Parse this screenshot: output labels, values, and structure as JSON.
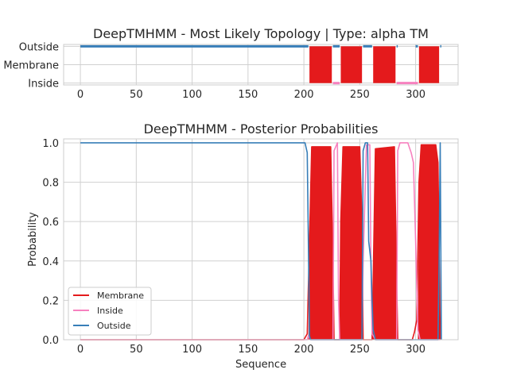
{
  "colors": {
    "membrane": "#e41a1c",
    "inside": "#f781bf",
    "outside": "#377eb8",
    "grid": "#d0d0d0",
    "axes": "#cccccc"
  },
  "chart_data": [
    {
      "type": "line",
      "title": "DeepTMHMM - Most Likely Topology | Type: alpha TM",
      "xlabel": "",
      "ylabel": "",
      "xlim": [
        -15,
        338
      ],
      "ylim": [
        -0.1,
        2.1
      ],
      "x_ticks": [
        "0",
        "50",
        "100",
        "150",
        "200",
        "250",
        "300"
      ],
      "y_ticks": [
        "Inside",
        "Membrane",
        "Outside"
      ],
      "grid": true,
      "series": [
        {
          "name": "Outside",
          "color_key": "outside",
          "segments": [
            [
              0,
              204
            ],
            [
              226,
              232
            ],
            [
              253,
              261
            ],
            [
              283,
              284
            ],
            [
              300,
              302
            ],
            [
              322,
              323
            ]
          ]
        },
        {
          "name": "Inside",
          "color_key": "inside",
          "segments": [
            [
              226,
              232
            ],
            [
              283,
              302
            ]
          ]
        },
        {
          "name": "Membrane",
          "color_key": "membrane",
          "segments": [
            [
              205,
              225
            ],
            [
              233,
              252
            ],
            [
              262,
              282
            ],
            [
              303,
              321
            ]
          ]
        }
      ]
    },
    {
      "type": "line",
      "title": "DeepTMHMM - Posterior Probabilities",
      "xlabel": "Sequence",
      "ylabel": "Probability",
      "xlim": [
        -15,
        338
      ],
      "ylim": [
        0,
        1.02
      ],
      "x_ticks": [
        "0",
        "50",
        "100",
        "150",
        "200",
        "250",
        "300"
      ],
      "y_ticks": [
        "0.0",
        "0.2",
        "0.4",
        "0.6",
        "0.8",
        "1.0"
      ],
      "grid": true,
      "legend": {
        "placement": "lower-left",
        "entries": [
          "Membrane",
          "Inside",
          "Outside"
        ]
      },
      "series": [
        {
          "name": "Membrane",
          "color_key": "membrane",
          "points": [
            [
              0,
              0
            ],
            [
              200,
              0
            ],
            [
              203,
              0.03
            ],
            [
              205,
              0.5
            ],
            [
              207,
              0.98
            ],
            [
              224,
              0.98
            ],
            [
              226,
              0.4
            ],
            [
              227,
              0
            ],
            [
              232,
              0
            ],
            [
              233,
              0.6
            ],
            [
              235,
              0.98
            ],
            [
              250,
              0.98
            ],
            [
              252,
              0.6
            ],
            [
              253,
              0
            ],
            [
              261,
              0
            ],
            [
              262,
              0.3
            ],
            [
              264,
              0.97
            ],
            [
              281,
              0.98
            ],
            [
              283,
              0.3
            ],
            [
              284,
              0
            ],
            [
              297,
              0
            ],
            [
              299,
              0.04
            ],
            [
              301,
              0.1
            ],
            [
              303,
              0.8
            ],
            [
              305,
              0.99
            ],
            [
              318,
              0.99
            ],
            [
              320,
              0.9
            ],
            [
              322,
              0
            ]
          ],
          "fill_regions": [
            [
              205,
              225
            ],
            [
              233,
              252
            ],
            [
              262,
              282
            ],
            [
              303,
              321
            ]
          ]
        },
        {
          "name": "Inside",
          "color_key": "inside",
          "points": [
            [
              0,
              0
            ],
            [
              203,
              0
            ],
            [
              204,
              0.02
            ],
            [
              206,
              0
            ],
            [
              226,
              0
            ],
            [
              227,
              0.96
            ],
            [
              230,
              1.0
            ],
            [
              231,
              0.2
            ],
            [
              232,
              0
            ],
            [
              252,
              0
            ],
            [
              253,
              0.4
            ],
            [
              256,
              0.99
            ],
            [
              259,
              0.99
            ],
            [
              260,
              0.4
            ],
            [
              261,
              0.03
            ],
            [
              264,
              0
            ],
            [
              283,
              0
            ],
            [
              284,
              0.96
            ],
            [
              286,
              1.0
            ],
            [
              293,
              1.0
            ],
            [
              296,
              0.95
            ],
            [
              298,
              0.9
            ],
            [
              300,
              0.5
            ],
            [
              302,
              0.05
            ],
            [
              304,
              0
            ],
            [
              322,
              0
            ]
          ]
        },
        {
          "name": "Outside",
          "color_key": "outside",
          "points": [
            [
              0,
              1.0
            ],
            [
              201,
              1.0
            ],
            [
              203,
              0.95
            ],
            [
              204,
              0.5
            ],
            [
              205,
              0.02
            ],
            [
              206,
              0
            ],
            [
              225,
              0
            ],
            [
              226,
              0
            ],
            [
              252,
              0
            ],
            [
              253,
              0.96
            ],
            [
              255,
              1.0
            ],
            [
              257,
              1.0
            ],
            [
              258,
              0.5
            ],
            [
              260,
              0.4
            ],
            [
              261,
              0.2
            ],
            [
              262,
              0.05
            ],
            [
              264,
              0
            ],
            [
              320,
              0
            ],
            [
              321,
              0.4
            ],
            [
              322,
              1.0
            ],
            [
              323,
              0
            ]
          ]
        }
      ]
    }
  ]
}
